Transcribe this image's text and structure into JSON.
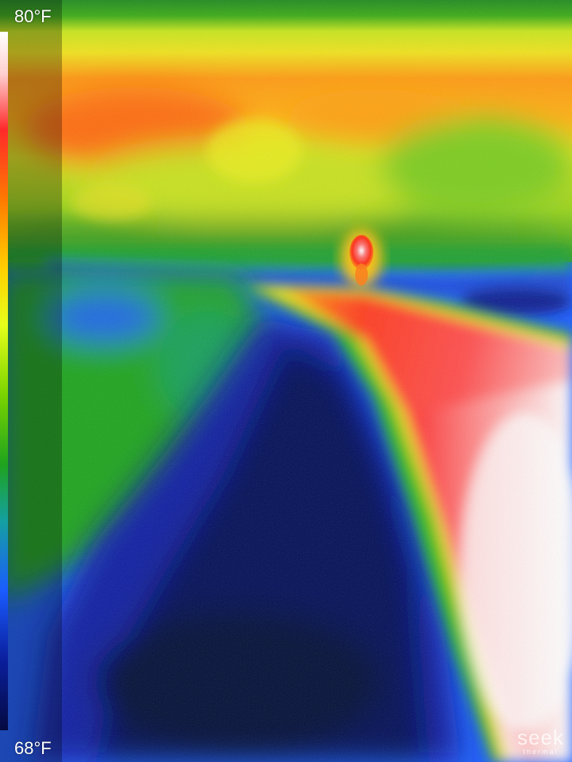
{
  "scale": {
    "max_label": "80°F",
    "min_label": "68°F"
  },
  "brand": {
    "name": "seek",
    "sub": "thermal"
  },
  "colors": {
    "hot": "#ffffff",
    "red": "#ff2a2a",
    "orange": "#ff7a00",
    "yellow": "#ffe000",
    "green": "#1ea31e",
    "blue": "#1a5cff",
    "cold": "#050a40"
  }
}
